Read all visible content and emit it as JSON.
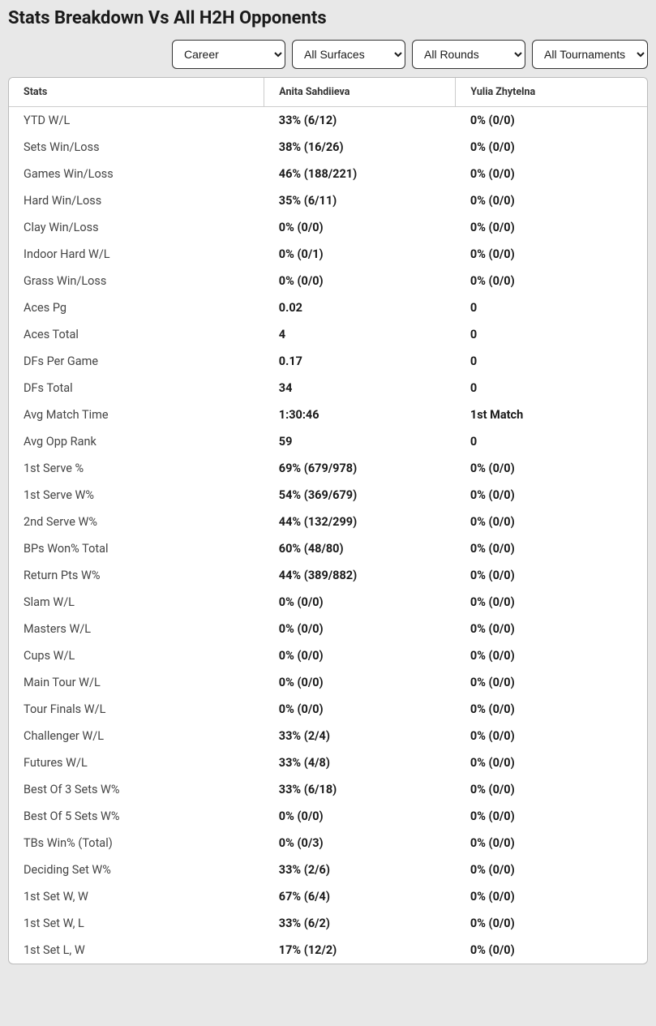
{
  "title": "Stats Breakdown Vs All H2H Opponents",
  "filters": {
    "timeframe": "Career",
    "surface": "All Surfaces",
    "rounds": "All Rounds",
    "tournaments": "All Tournaments"
  },
  "table": {
    "columns": [
      "Stats",
      "Anita Sahdiieva",
      "Yulia Zhytelna"
    ],
    "rows": [
      [
        "YTD W/L",
        "33% (6/12)",
        "0% (0/0)"
      ],
      [
        "Sets Win/Loss",
        "38% (16/26)",
        "0% (0/0)"
      ],
      [
        "Games Win/Loss",
        "46% (188/221)",
        "0% (0/0)"
      ],
      [
        "Hard Win/Loss",
        "35% (6/11)",
        "0% (0/0)"
      ],
      [
        "Clay Win/Loss",
        "0% (0/0)",
        "0% (0/0)"
      ],
      [
        "Indoor Hard W/L",
        "0% (0/1)",
        "0% (0/0)"
      ],
      [
        "Grass Win/Loss",
        "0% (0/0)",
        "0% (0/0)"
      ],
      [
        "Aces Pg",
        "0.02",
        "0"
      ],
      [
        "Aces Total",
        "4",
        "0"
      ],
      [
        "DFs Per Game",
        "0.17",
        "0"
      ],
      [
        "DFs Total",
        "34",
        "0"
      ],
      [
        "Avg Match Time",
        "1:30:46",
        "1st Match"
      ],
      [
        "Avg Opp Rank",
        "59",
        "0"
      ],
      [
        "1st Serve %",
        "69% (679/978)",
        "0% (0/0)"
      ],
      [
        "1st Serve W%",
        "54% (369/679)",
        "0% (0/0)"
      ],
      [
        "2nd Serve W%",
        "44% (132/299)",
        "0% (0/0)"
      ],
      [
        "BPs Won% Total",
        "60% (48/80)",
        "0% (0/0)"
      ],
      [
        "Return Pts W%",
        "44% (389/882)",
        "0% (0/0)"
      ],
      [
        "Slam W/L",
        "0% (0/0)",
        "0% (0/0)"
      ],
      [
        "Masters W/L",
        "0% (0/0)",
        "0% (0/0)"
      ],
      [
        "Cups W/L",
        "0% (0/0)",
        "0% (0/0)"
      ],
      [
        "Main Tour W/L",
        "0% (0/0)",
        "0% (0/0)"
      ],
      [
        "Tour Finals W/L",
        "0% (0/0)",
        "0% (0/0)"
      ],
      [
        "Challenger W/L",
        "33% (2/4)",
        "0% (0/0)"
      ],
      [
        "Futures W/L",
        "33% (4/8)",
        "0% (0/0)"
      ],
      [
        "Best Of 3 Sets W%",
        "33% (6/18)",
        "0% (0/0)"
      ],
      [
        "Best Of 5 Sets W%",
        "0% (0/0)",
        "0% (0/0)"
      ],
      [
        "TBs Win% (Total)",
        "0% (0/3)",
        "0% (0/0)"
      ],
      [
        "Deciding Set W%",
        "33% (2/6)",
        "0% (0/0)"
      ],
      [
        "1st Set W, W",
        "67% (6/4)",
        "0% (0/0)"
      ],
      [
        "1st Set W, L",
        "33% (6/2)",
        "0% (0/0)"
      ],
      [
        "1st Set L, W",
        "17% (12/2)",
        "0% (0/0)"
      ]
    ]
  }
}
